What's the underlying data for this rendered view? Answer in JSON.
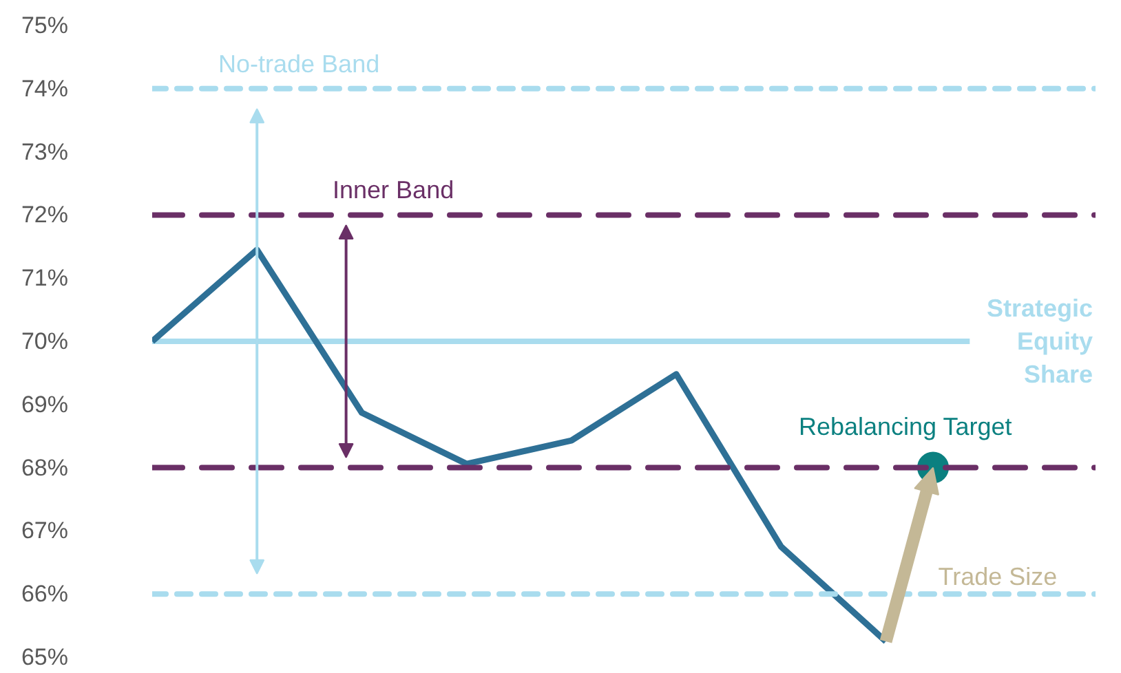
{
  "chart_data": {
    "type": "line",
    "categories": [
      null,
      null,
      null,
      null,
      null,
      null,
      null,
      null
    ],
    "series": [
      {
        "color": "#2e7096",
        "values": [
          70,
          71.45,
          68.87,
          68.06,
          68.43,
          69.48,
          66.75,
          65.25
        ]
      }
    ],
    "ylim": [
      65,
      75
    ],
    "yticks": [
      {
        "value": 65,
        "label": "65%"
      },
      {
        "value": 66,
        "label": "66%"
      },
      {
        "value": 67,
        "label": "67%"
      },
      {
        "value": 68,
        "label": "68%"
      },
      {
        "value": 69,
        "label": "69%"
      },
      {
        "value": 70,
        "label": "70%"
      },
      {
        "value": 71,
        "label": "71%"
      },
      {
        "value": 72,
        "label": "72%"
      },
      {
        "value": 73,
        "label": "73%"
      },
      {
        "value": 74,
        "label": "74%"
      },
      {
        "value": 75,
        "label": "75%"
      }
    ],
    "tick_labels": "y",
    "grid": false,
    "ref_lines": [
      {
        "axis": "y",
        "value": 74,
        "label": "No-trade Band",
        "color": "#a9dcee",
        "line_style": "dashed"
      },
      {
        "axis": "y",
        "value": 66,
        "color": "#a9dcee",
        "line_style": "dashed"
      },
      {
        "axis": "y",
        "value": 72,
        "label": "Inner Band",
        "color": "#6a2f66",
        "line_style": "dashed"
      },
      {
        "axis": "y",
        "value": 68,
        "color": "#6a2f66",
        "line_style": "dashed"
      },
      {
        "axis": "y",
        "value": 70,
        "label": "Strategic Equity Share",
        "color": "#a9dcee",
        "line_style": "solid"
      }
    ],
    "annotations": [
      {
        "text": "Rebalancing Target",
        "y": 68
      },
      "Trade Size"
    ]
  }
}
